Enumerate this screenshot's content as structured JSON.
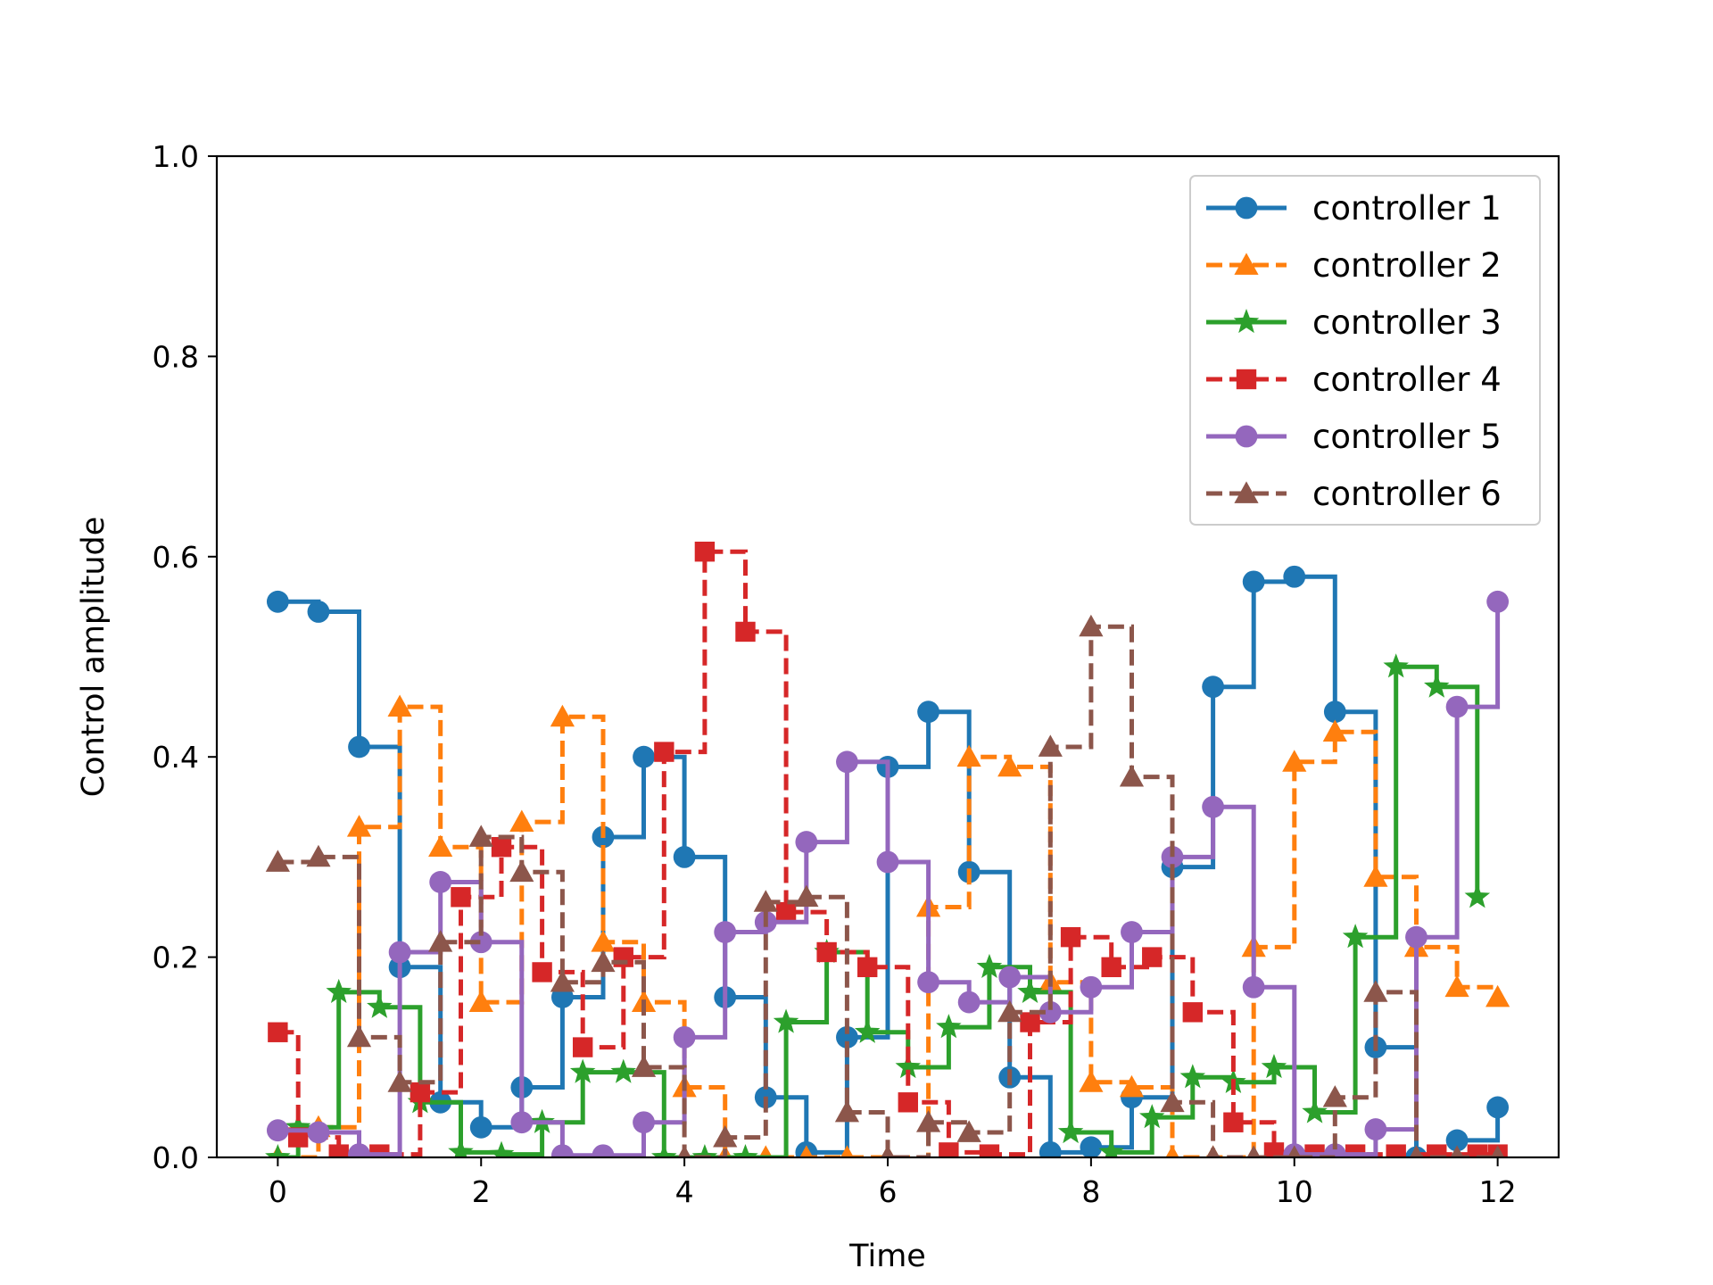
{
  "chart_data": {
    "type": "line",
    "step": "post",
    "title": "",
    "xlabel": "Time",
    "ylabel": "Control amplitude",
    "xlim": [
      -0.6,
      12.6
    ],
    "ylim": [
      0,
      1
    ],
    "xticks": [
      0,
      2,
      4,
      6,
      8,
      10,
      12
    ],
    "yticks": [
      0.0,
      0.2,
      0.4,
      0.6,
      0.8,
      1.0
    ],
    "xtick_labels": [
      "0",
      "2",
      "4",
      "6",
      "8",
      "10",
      "12"
    ],
    "ytick_labels": [
      "0.0",
      "0.2",
      "0.4",
      "0.6",
      "0.8",
      "1.0"
    ],
    "grid": false,
    "legend_position": "top-right",
    "series": [
      {
        "name": "controller 1",
        "color": "#1f77b4",
        "marker": "circle",
        "dash": "solid",
        "x": [
          0,
          0.4,
          0.8,
          1.2,
          1.6,
          2.0,
          2.4,
          2.8,
          3.2,
          3.6,
          4.0,
          4.4,
          4.8,
          5.2,
          5.6,
          6.0,
          6.4,
          6.8,
          7.2,
          7.6,
          8.0,
          8.4,
          8.8,
          9.2,
          9.6,
          10.0,
          10.4,
          10.8,
          11.2,
          11.6,
          12.0
        ],
        "y": [
          0.555,
          0.545,
          0.41,
          0.19,
          0.055,
          0.03,
          0.07,
          0.16,
          0.32,
          0.4,
          0.3,
          0.16,
          0.06,
          0.005,
          0.12,
          0.39,
          0.445,
          0.285,
          0.08,
          0.005,
          0.01,
          0.06,
          0.29,
          0.47,
          0.575,
          0.58,
          0.445,
          0.11,
          0.0,
          0.017,
          0.05
        ]
      },
      {
        "name": "controller 2",
        "color": "#ff7f0e",
        "marker": "triangle",
        "dash": "dashed",
        "x": [
          0,
          0.4,
          0.8,
          1.2,
          1.6,
          2.0,
          2.4,
          2.8,
          3.2,
          3.6,
          4.0,
          4.4,
          4.8,
          5.2,
          5.6,
          6.0,
          6.4,
          6.8,
          7.2,
          7.6,
          8.0,
          8.4,
          8.8,
          9.2,
          9.6,
          10.0,
          10.4,
          10.8,
          11.2,
          11.6,
          12.0
        ],
        "y": [
          0.0,
          0.03,
          0.33,
          0.45,
          0.31,
          0.155,
          0.335,
          0.44,
          0.215,
          0.155,
          0.07,
          0.0,
          0.0,
          0.0,
          0.0,
          0.0,
          0.25,
          0.4,
          0.39,
          0.175,
          0.075,
          0.07,
          0.0,
          0.0,
          0.21,
          0.395,
          0.425,
          0.28,
          0.21,
          0.17,
          0.16
        ]
      },
      {
        "name": "controller 3",
        "color": "#2ca02c",
        "marker": "star",
        "dash": "solid",
        "x": [
          0,
          0.2,
          0.6,
          1.0,
          1.4,
          1.8,
          2.2,
          2.6,
          3.0,
          3.4,
          3.8,
          4.2,
          4.6,
          5.0,
          5.4,
          5.8,
          6.2,
          6.6,
          7.0,
          7.4,
          7.8,
          8.2,
          8.6,
          9.0,
          9.4,
          9.8,
          10.2,
          10.6,
          11.0,
          11.4,
          11.8
        ],
        "y": [
          0.0,
          0.03,
          0.165,
          0.15,
          0.055,
          0.005,
          0.003,
          0.035,
          0.085,
          0.085,
          0.0,
          0.0,
          0.0,
          0.135,
          0.205,
          0.125,
          0.09,
          0.13,
          0.19,
          0.165,
          0.025,
          0.005,
          0.04,
          0.08,
          0.075,
          0.09,
          0.045,
          0.22,
          0.49,
          0.47,
          0.26
        ]
      },
      {
        "name": "controller 4",
        "color": "#d62728",
        "marker": "square",
        "dash": "dashed",
        "x": [
          0,
          0.2,
          0.6,
          1.0,
          1.4,
          1.8,
          2.2,
          2.6,
          3.0,
          3.4,
          3.8,
          4.2,
          4.6,
          5.0,
          5.4,
          5.8,
          6.2,
          6.6,
          7.0,
          7.4,
          7.8,
          8.2,
          8.6,
          9.0,
          9.4,
          9.8,
          10.2,
          10.6,
          11.0,
          11.4,
          11.8,
          12.0
        ],
        "y": [
          0.125,
          0.02,
          0.003,
          0.003,
          0.065,
          0.26,
          0.31,
          0.185,
          0.11,
          0.2,
          0.405,
          0.605,
          0.525,
          0.245,
          0.205,
          0.19,
          0.055,
          0.005,
          0.003,
          0.135,
          0.22,
          0.19,
          0.2,
          0.145,
          0.035,
          0.005,
          0.003,
          0.003,
          0.003,
          0.003,
          0.003,
          0.003
        ]
      },
      {
        "name": "controller 5",
        "color": "#9467bd",
        "marker": "circle",
        "dash": "solid",
        "x": [
          0,
          0.4,
          0.8,
          1.2,
          1.6,
          2.0,
          2.4,
          2.8,
          3.2,
          3.6,
          4.0,
          4.4,
          4.8,
          5.2,
          5.6,
          6.0,
          6.4,
          6.8,
          7.2,
          7.6,
          8.0,
          8.4,
          8.8,
          9.2,
          9.6,
          10.0,
          10.4,
          10.8,
          11.2,
          11.6,
          12.0
        ],
        "y": [
          0.027,
          0.025,
          0.003,
          0.205,
          0.275,
          0.215,
          0.035,
          0.002,
          0.002,
          0.035,
          0.12,
          0.225,
          0.235,
          0.315,
          0.395,
          0.295,
          0.175,
          0.155,
          0.18,
          0.145,
          0.17,
          0.225,
          0.3,
          0.35,
          0.17,
          0.003,
          0.003,
          0.028,
          0.22,
          0.45,
          0.555
        ]
      },
      {
        "name": "controller 6",
        "color": "#8c564b",
        "marker": "triangle",
        "dash": "dashed",
        "x": [
          0,
          0.4,
          0.8,
          1.2,
          1.6,
          2.0,
          2.4,
          2.8,
          3.2,
          3.6,
          4.0,
          4.4,
          4.8,
          5.2,
          5.6,
          6.0,
          6.4,
          6.8,
          7.2,
          7.6,
          8.0,
          8.4,
          8.8,
          9.2,
          9.6,
          10.0,
          10.4,
          10.8,
          11.2,
          11.6,
          12.0
        ],
        "y": [
          0.295,
          0.3,
          0.12,
          0.075,
          0.215,
          0.32,
          0.285,
          0.175,
          0.195,
          0.09,
          0.0,
          0.02,
          0.255,
          0.26,
          0.045,
          0.0,
          0.035,
          0.025,
          0.145,
          0.41,
          0.53,
          0.38,
          0.055,
          0.0,
          0.0,
          0.0,
          0.06,
          0.165,
          0.0,
          0.0,
          0.0
        ]
      }
    ]
  }
}
